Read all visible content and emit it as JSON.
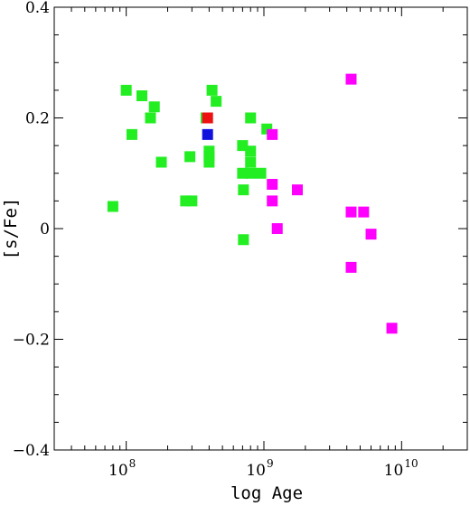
{
  "chart_data": {
    "type": "scatter",
    "title": "",
    "xlabel": "log Age",
    "ylabel": "[s/Fe]",
    "x_scale": "log",
    "xlim": [
      30000000,
      30000000000
    ],
    "ylim": [
      -0.4,
      0.4
    ],
    "grid": false,
    "legend": "none",
    "x_ticks": [
      {
        "value": 100000000,
        "base": "10",
        "exp": "8"
      },
      {
        "value": 1000000000,
        "base": "10",
        "exp": "9"
      },
      {
        "value": 10000000000,
        "base": "10",
        "exp": "10"
      }
    ],
    "y_ticks": [
      {
        "value": -0.4,
        "label": "−0.4"
      },
      {
        "value": -0.2,
        "label": "−0.2"
      },
      {
        "value": 0,
        "label": "0"
      },
      {
        "value": 0.2,
        "label": "0.2"
      },
      {
        "value": 0.4,
        "label": "0.4"
      }
    ],
    "series": [
      {
        "color": "#22ee22",
        "points": [
          [
            80000000,
            0.04
          ],
          [
            100000000,
            0.25
          ],
          [
            110000000,
            0.17
          ],
          [
            130000000,
            0.24
          ],
          [
            150000000,
            0.2
          ],
          [
            160000000,
            0.22
          ],
          [
            180000000,
            0.12
          ],
          [
            270000000,
            0.05
          ],
          [
            290000000,
            0.13
          ],
          [
            300000000,
            0.05
          ],
          [
            380000000,
            0.2
          ],
          [
            400000000,
            0.12
          ],
          [
            400000000,
            0.13
          ],
          [
            400000000,
            0.14
          ],
          [
            420000000,
            0.25
          ],
          [
            450000000,
            0.23
          ],
          [
            700000000,
            0.15
          ],
          [
            700000000,
            0.1
          ],
          [
            710000000,
            0.07
          ],
          [
            710000000,
            -0.02
          ],
          [
            800000000,
            0.2
          ],
          [
            800000000,
            0.14
          ],
          [
            800000000,
            0.12
          ],
          [
            800000000,
            0.1
          ],
          [
            950000000,
            0.1
          ],
          [
            1050000000,
            0.18
          ]
        ]
      },
      {
        "color": "#ff00ff",
        "points": [
          [
            1150000000,
            0.17
          ],
          [
            1150000000,
            0.08
          ],
          [
            1150000000,
            0.05
          ],
          [
            1250000000,
            0.0
          ],
          [
            1750000000,
            0.07
          ],
          [
            4300000000,
            0.27
          ],
          [
            4300000000,
            0.03
          ],
          [
            4300000000,
            -0.07
          ],
          [
            5300000000,
            0.03
          ],
          [
            6000000000,
            -0.01
          ],
          [
            8500000000,
            -0.18
          ]
        ]
      },
      {
        "color": "#ee1111",
        "points": [
          [
            390000000,
            0.2
          ]
        ]
      },
      {
        "color": "#1111dd",
        "points": [
          [
            390000000,
            0.17
          ]
        ]
      }
    ]
  }
}
